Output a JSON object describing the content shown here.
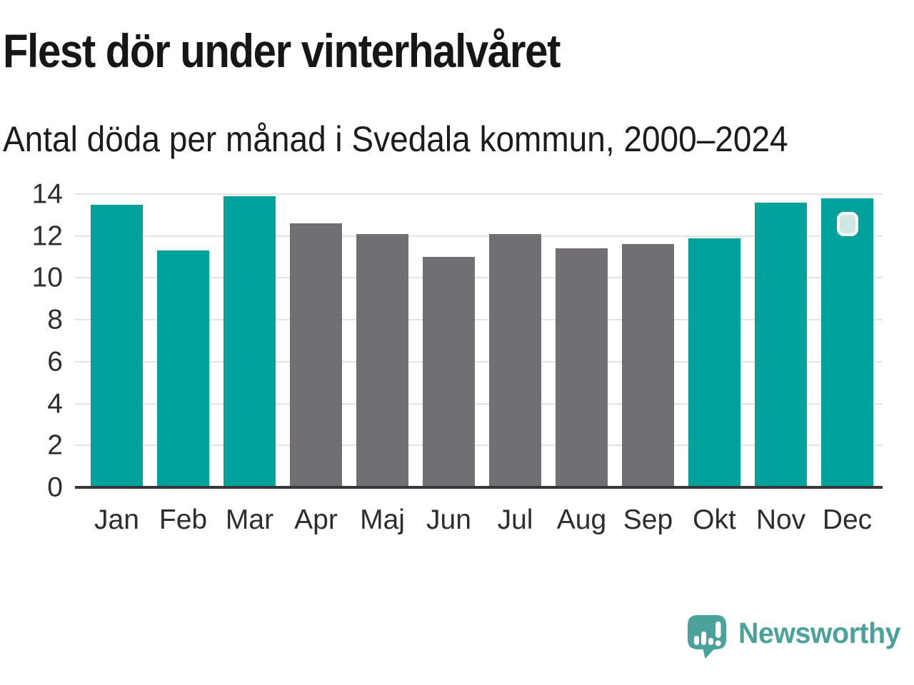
{
  "chart_data": {
    "type": "bar",
    "title": "Flest dör under vinterhalvåret",
    "subtitle": "Antal döda per månad i Svedala kommun, 2000–2024",
    "categories": [
      "Jan",
      "Feb",
      "Mar",
      "Apr",
      "Maj",
      "Jun",
      "Jul",
      "Aug",
      "Sep",
      "Okt",
      "Nov",
      "Dec"
    ],
    "values": [
      13.5,
      11.3,
      13.9,
      12.6,
      12.1,
      11.0,
      12.1,
      11.4,
      11.6,
      11.9,
      13.6,
      13.8
    ],
    "highlighted_categories": [
      "Jan",
      "Feb",
      "Mar",
      "Okt",
      "Nov",
      "Dec"
    ],
    "xlabel": "",
    "ylabel": "",
    "ylim": [
      0,
      14
    ],
    "yticks": [
      0,
      2,
      4,
      6,
      8,
      10,
      12,
      14
    ],
    "grid": "horizontal",
    "legend": "none",
    "colors": {
      "highlight_bar": "#00a29b",
      "regular_bar": "#716f74",
      "axis_text": "#2d2d2d",
      "gridline": "#e4e2e2"
    },
    "marker": {
      "on_category": "Dec",
      "shape": "rounded-square",
      "fill": "#d0e8e4",
      "border": "#ffffff"
    }
  },
  "branding": {
    "logo_text": "Newsworthy",
    "logo_color": "#4ba29c"
  }
}
